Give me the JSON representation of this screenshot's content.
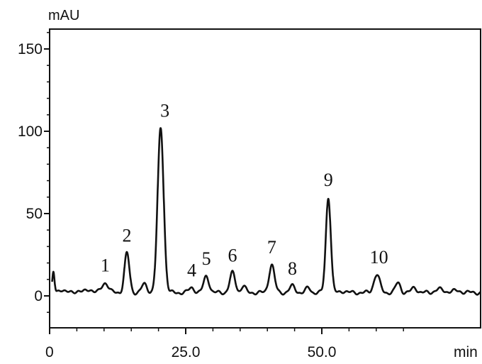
{
  "chart_data": {
    "type": "line",
    "title": "",
    "xlabel": "min",
    "ylabel": "mAU",
    "xlim": [
      0,
      66
    ],
    "ylim": [
      -20,
      162
    ],
    "x_ticks": [
      {
        "value": 0,
        "label": "0"
      },
      {
        "value": 25,
        "label": "25.0"
      },
      {
        "value": 50,
        "label": "50.0"
      }
    ],
    "x_minor_ticks": [
      5,
      10,
      15,
      20,
      30,
      35,
      40,
      45,
      55,
      60,
      65
    ],
    "y_ticks": [
      {
        "value": 0,
        "label": "0"
      },
      {
        "value": 50,
        "label": "50"
      },
      {
        "value": 100,
        "label": "100"
      },
      {
        "value": 150,
        "label": "150"
      }
    ],
    "grid": false,
    "baseline": 2,
    "peaks": [
      {
        "label": "",
        "x": 0.7,
        "height": 12,
        "width": 0.2
      },
      {
        "label": "",
        "x": 2.1,
        "height": 2,
        "width": 0.5
      },
      {
        "label": "",
        "x": 5.0,
        "height": 1,
        "width": 0.6
      },
      {
        "label": "",
        "x": 7.3,
        "height": 2,
        "width": 0.6
      },
      {
        "label": "1",
        "x": 10.2,
        "height": 6,
        "width": 0.6
      },
      {
        "label": "2",
        "x": 14.2,
        "height": 24,
        "width": 0.45
      },
      {
        "label": "",
        "x": 17.4,
        "height": 5,
        "width": 0.5
      },
      {
        "label": "3",
        "x": 20.4,
        "height": 100,
        "width": 0.55
      },
      {
        "label": "4",
        "x": 26.1,
        "height": 3,
        "width": 0.5
      },
      {
        "label": "5",
        "x": 28.8,
        "height": 10,
        "width": 0.5
      },
      {
        "label": "6",
        "x": 33.6,
        "height": 12,
        "width": 0.5
      },
      {
        "label": "",
        "x": 35.6,
        "height": 4,
        "width": 0.4
      },
      {
        "label": "7",
        "x": 40.8,
        "height": 17,
        "width": 0.5
      },
      {
        "label": "8",
        "x": 44.6,
        "height": 4,
        "width": 0.5
      },
      {
        "label": "",
        "x": 47.5,
        "height": 3,
        "width": 0.4
      },
      {
        "label": "9",
        "x": 51.2,
        "height": 58,
        "width": 0.45
      },
      {
        "label": "",
        "x": 54.0,
        "height": 1,
        "width": 0.5
      },
      {
        "label": "10",
        "x": 60.1,
        "height": 11,
        "width": 0.55
      },
      {
        "label": "",
        "x": 64.0,
        "height": 6,
        "width": 0.45
      },
      {
        "label": "",
        "x": 67.0,
        "height": 3,
        "width": 0.5
      },
      {
        "label": "",
        "x": 71.5,
        "height": 2,
        "width": 0.7
      },
      {
        "label": "",
        "x": 74.5,
        "height": 1,
        "width": 1.2
      }
    ]
  }
}
